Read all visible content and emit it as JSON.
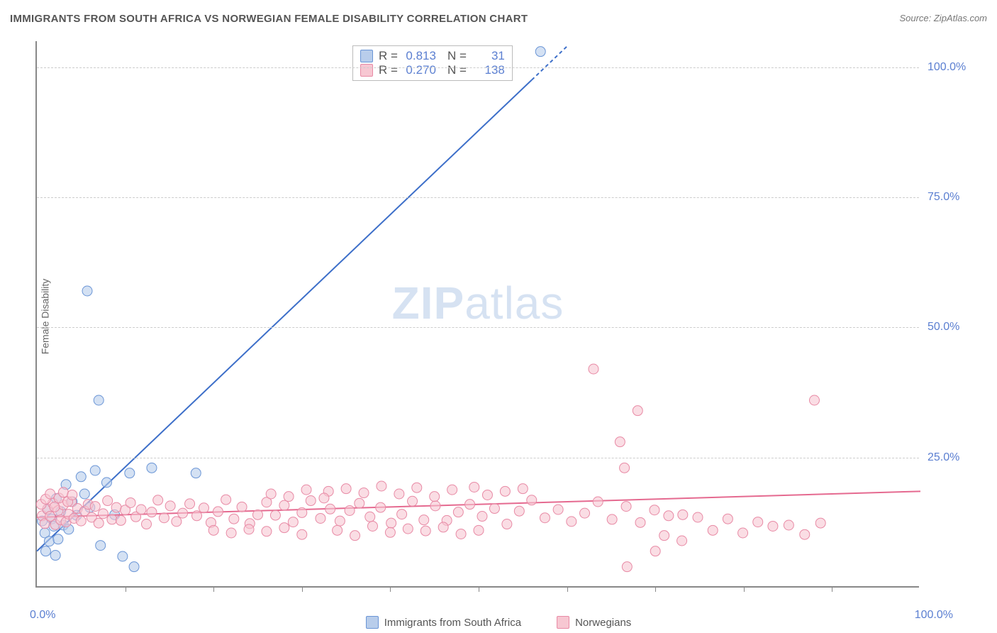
{
  "title": "IMMIGRANTS FROM SOUTH AFRICA VS NORWEGIAN FEMALE DISABILITY CORRELATION CHART",
  "source": "Source: ZipAtlas.com",
  "ylabel": "Female Disability",
  "watermark_zip": "ZIP",
  "watermark_atlas": "atlas",
  "chart": {
    "type": "scatter",
    "xlim": [
      0,
      100
    ],
    "ylim": [
      0,
      105
    ],
    "x_tick_percent_spacing": 10,
    "x_min_label": "0.0%",
    "x_max_label": "100.0%",
    "y_ticks": [
      {
        "v": 25,
        "label": "25.0%"
      },
      {
        "v": 50,
        "label": "50.0%"
      },
      {
        "v": 75,
        "label": "75.0%"
      },
      {
        "v": 100,
        "label": "100.0%"
      }
    ],
    "grid_color": "#cccccc",
    "background_color": "#ffffff",
    "series": [
      {
        "key": "sa",
        "name": "Immigrants from South Africa",
        "fill": "#b8cdeb",
        "stroke": "#6a95d6",
        "r_label": "R =",
        "r": "0.813",
        "n_label": "N =",
        "n": "31",
        "regression": {
          "x1": 0,
          "y1": 7,
          "x2": 60,
          "y2": 104,
          "color": "#3d6fc9",
          "width": 2,
          "dash_from_x": 56
        },
        "marker_r": 7,
        "points": [
          [
            0.6,
            12.8
          ],
          [
            0.9,
            10.5
          ],
          [
            1.2,
            15.0
          ],
          [
            1.4,
            8.9
          ],
          [
            1.7,
            13.2
          ],
          [
            1.9,
            11.8
          ],
          [
            2.2,
            17.1
          ],
          [
            2.4,
            9.3
          ],
          [
            2.7,
            14.6
          ],
          [
            3.0,
            12.0
          ],
          [
            3.3,
            19.8
          ],
          [
            3.6,
            11.2
          ],
          [
            4.0,
            16.5
          ],
          [
            4.5,
            13.9
          ],
          [
            5.0,
            21.3
          ],
          [
            5.4,
            18.0
          ],
          [
            6.0,
            15.4
          ],
          [
            6.6,
            22.5
          ],
          [
            7.2,
            8.1
          ],
          [
            7.9,
            20.2
          ],
          [
            8.8,
            14.0
          ],
          [
            9.7,
            6.0
          ],
          [
            5.7,
            57.0
          ],
          [
            10.5,
            22.0
          ],
          [
            7.0,
            36.0
          ],
          [
            13.0,
            23.0
          ],
          [
            18.0,
            22.0
          ],
          [
            1.0,
            7.0
          ],
          [
            2.1,
            6.2
          ],
          [
            11.0,
            4.0
          ],
          [
            57.0,
            103.0
          ]
        ]
      },
      {
        "key": "no",
        "name": "Norwegians",
        "fill": "#f7c7d2",
        "stroke": "#e88aa5",
        "r_label": "R =",
        "r": "0.270",
        "n_label": "N =",
        "n": "138",
        "regression": {
          "x1": 0,
          "y1": 13.5,
          "x2": 100,
          "y2": 18.5,
          "color": "#e56a90",
          "width": 2
        },
        "marker_r": 7,
        "points": [
          [
            0.6,
            13.8
          ],
          [
            0.9,
            12.3
          ],
          [
            1.2,
            15.1
          ],
          [
            1.5,
            13.7
          ],
          [
            1.8,
            16.2
          ],
          [
            2.1,
            12.1
          ],
          [
            2.4,
            14.8
          ],
          [
            2.7,
            13.0
          ],
          [
            3.0,
            15.9
          ],
          [
            3.3,
            12.6
          ],
          [
            3.6,
            14.1
          ],
          [
            3.9,
            16.5
          ],
          [
            4.2,
            13.3
          ],
          [
            4.6,
            15.2
          ],
          [
            5.0,
            12.8
          ],
          [
            5.4,
            14.7
          ],
          [
            5.8,
            16.0
          ],
          [
            6.2,
            13.5
          ],
          [
            6.6,
            15.6
          ],
          [
            7.0,
            12.4
          ],
          [
            7.5,
            14.2
          ],
          [
            8.0,
            16.7
          ],
          [
            8.5,
            13.1
          ],
          [
            9.0,
            15.4
          ],
          [
            9.5,
            12.9
          ],
          [
            10.0,
            14.9
          ],
          [
            10.6,
            16.3
          ],
          [
            11.2,
            13.6
          ],
          [
            11.8,
            15.0
          ],
          [
            12.4,
            12.2
          ],
          [
            13.0,
            14.5
          ],
          [
            13.7,
            16.8
          ],
          [
            14.4,
            13.4
          ],
          [
            15.1,
            15.7
          ],
          [
            15.8,
            12.7
          ],
          [
            16.5,
            14.3
          ],
          [
            17.3,
            16.1
          ],
          [
            18.1,
            13.8
          ],
          [
            18.9,
            15.3
          ],
          [
            19.7,
            12.5
          ],
          [
            20.5,
            14.6
          ],
          [
            21.4,
            16.9
          ],
          [
            22.3,
            13.2
          ],
          [
            23.2,
            15.5
          ],
          [
            24.1,
            12.3
          ],
          [
            25.0,
            14.0
          ],
          [
            26.0,
            16.4
          ],
          [
            27.0,
            13.9
          ],
          [
            28.0,
            15.8
          ],
          [
            29.0,
            12.6
          ],
          [
            30.0,
            14.4
          ],
          [
            31.0,
            16.7
          ],
          [
            32.1,
            13.3
          ],
          [
            33.2,
            15.1
          ],
          [
            34.3,
            12.8
          ],
          [
            35.4,
            14.8
          ],
          [
            36.5,
            16.2
          ],
          [
            37.7,
            13.6
          ],
          [
            38.9,
            15.4
          ],
          [
            40.1,
            12.4
          ],
          [
            41.3,
            14.1
          ],
          [
            42.5,
            16.6
          ],
          [
            43.8,
            13.0
          ],
          [
            45.1,
            15.7
          ],
          [
            46.4,
            12.9
          ],
          [
            47.7,
            14.5
          ],
          [
            49.0,
            16.0
          ],
          [
            50.4,
            13.7
          ],
          [
            51.8,
            15.2
          ],
          [
            53.2,
            12.2
          ],
          [
            54.6,
            14.7
          ],
          [
            56.0,
            16.8
          ],
          [
            57.5,
            13.4
          ],
          [
            59.0,
            15.0
          ],
          [
            60.5,
            12.7
          ],
          [
            62.0,
            14.3
          ],
          [
            63.5,
            16.5
          ],
          [
            65.1,
            13.1
          ],
          [
            66.7,
            15.6
          ],
          [
            68.3,
            12.5
          ],
          [
            69.9,
            14.9
          ],
          [
            66.0,
            28.0
          ],
          [
            63.0,
            42.0
          ],
          [
            66.5,
            23.0
          ],
          [
            66.8,
            4.0
          ],
          [
            68.0,
            34.0
          ],
          [
            71.5,
            13.8
          ],
          [
            73.1,
            14.0
          ],
          [
            74.8,
            13.5
          ],
          [
            76.5,
            11.0
          ],
          [
            78.2,
            13.2
          ],
          [
            79.9,
            10.5
          ],
          [
            81.6,
            12.6
          ],
          [
            83.3,
            11.8
          ],
          [
            85.1,
            12.0
          ],
          [
            86.9,
            10.2
          ],
          [
            88.7,
            12.4
          ],
          [
            88.0,
            36.0
          ],
          [
            70.0,
            7.0
          ],
          [
            71.0,
            10.0
          ],
          [
            73.0,
            9.0
          ],
          [
            33.0,
            18.5
          ],
          [
            35.0,
            19.0
          ],
          [
            37.0,
            18.2
          ],
          [
            39.0,
            19.5
          ],
          [
            41.0,
            18.0
          ],
          [
            43.0,
            19.2
          ],
          [
            45.0,
            17.5
          ],
          [
            47.0,
            18.8
          ],
          [
            49.5,
            19.3
          ],
          [
            51.0,
            17.8
          ],
          [
            53.0,
            18.5
          ],
          [
            55.0,
            19.0
          ],
          [
            26.5,
            18.0
          ],
          [
            28.5,
            17.5
          ],
          [
            30.5,
            18.8
          ],
          [
            32.5,
            17.2
          ],
          [
            0.5,
            16.0
          ],
          [
            1.0,
            17.0
          ],
          [
            1.5,
            18.0
          ],
          [
            2.0,
            15.5
          ],
          [
            2.5,
            17.2
          ],
          [
            3.0,
            18.3
          ],
          [
            3.5,
            16.5
          ],
          [
            4.0,
            17.8
          ],
          [
            20.0,
            11.0
          ],
          [
            22.0,
            10.5
          ],
          [
            24.0,
            11.2
          ],
          [
            26.0,
            10.8
          ],
          [
            28.0,
            11.5
          ],
          [
            30.0,
            10.2
          ],
          [
            34.0,
            11.0
          ],
          [
            36.0,
            10.0
          ],
          [
            38.0,
            11.8
          ],
          [
            40.0,
            10.6
          ],
          [
            42.0,
            11.3
          ],
          [
            44.0,
            10.9
          ],
          [
            46.0,
            11.6
          ],
          [
            48.0,
            10.3
          ],
          [
            50.0,
            11.0
          ]
        ]
      }
    ]
  },
  "bottom_legend": [
    {
      "label": "Immigrants from South Africa",
      "fill": "#b8cdeb",
      "stroke": "#6a95d6"
    },
    {
      "label": "Norwegians",
      "fill": "#f7c7d2",
      "stroke": "#e88aa5"
    }
  ]
}
